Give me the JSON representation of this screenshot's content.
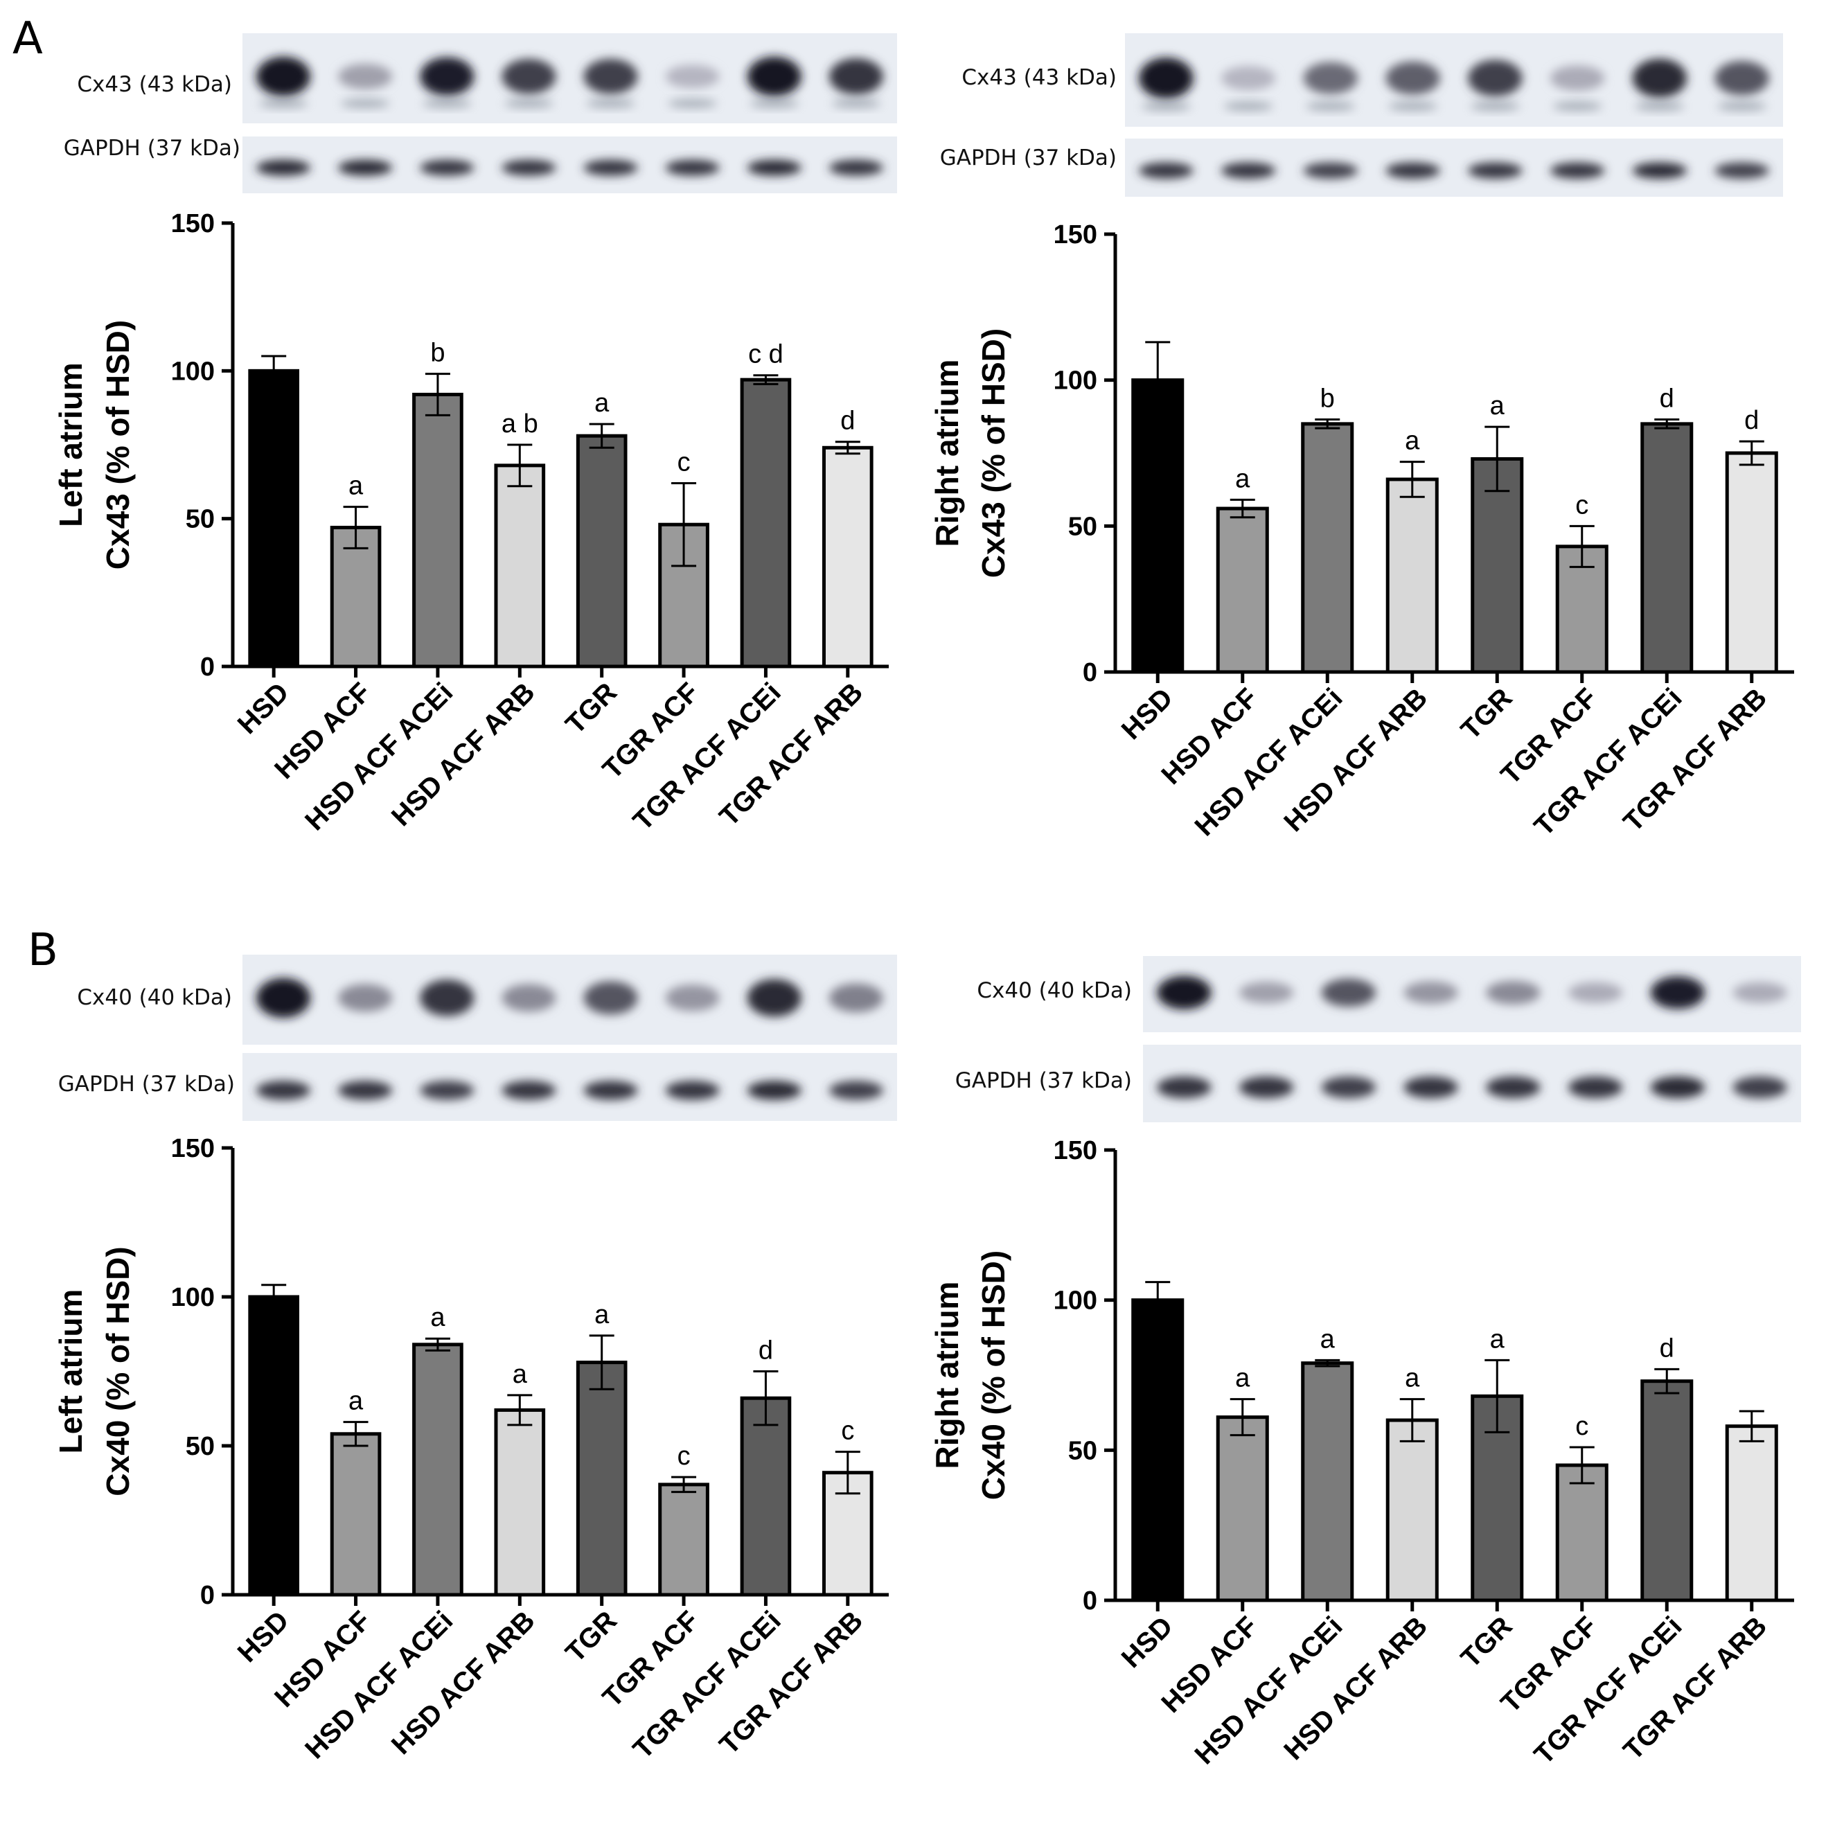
{
  "panels": {
    "A": "A",
    "B": "B"
  },
  "blots": [
    {
      "protein_label": "Cx43 (43 kDa)",
      "loading_label": "GAPDH (37 kDa)",
      "protein_intensity": [
        1.0,
        0.35,
        0.95,
        0.8,
        0.8,
        0.25,
        1.0,
        0.85
      ],
      "loading_intensity": [
        0.9,
        0.9,
        0.85,
        0.85,
        0.85,
        0.85,
        0.9,
        0.85
      ]
    },
    {
      "protein_label": "Cx43 (43 kDa)",
      "loading_label": "GAPDH (37 kDa)",
      "protein_intensity": [
        1.0,
        0.25,
        0.6,
        0.65,
        0.8,
        0.3,
        0.9,
        0.7
      ],
      "loading_intensity": [
        0.85,
        0.85,
        0.8,
        0.85,
        0.85,
        0.85,
        0.9,
        0.8
      ]
    },
    {
      "protein_label": "Cx40 (40 kDa)",
      "loading_label": "GAPDH (37 kDa)",
      "protein_intensity": [
        1.0,
        0.45,
        0.85,
        0.45,
        0.7,
        0.4,
        0.9,
        0.5
      ],
      "loading_intensity": [
        0.85,
        0.85,
        0.8,
        0.85,
        0.85,
        0.85,
        0.9,
        0.8
      ]
    },
    {
      "protein_label": "Cx40 (40 kDa)",
      "loading_label": "GAPDH (37 kDa)",
      "protein_intensity": [
        1.0,
        0.35,
        0.7,
        0.4,
        0.45,
        0.3,
        0.95,
        0.3
      ],
      "loading_intensity": [
        0.85,
        0.85,
        0.8,
        0.85,
        0.85,
        0.85,
        0.9,
        0.8
      ]
    }
  ],
  "chart_data": [
    {
      "type": "bar",
      "categories": [
        "HSD",
        "HSD ACF",
        "HSD ACF ACEi",
        "HSD ACF ARB",
        "TGR",
        "TGR ACF",
        "TGR ACF ACEi",
        "TGR ACF ARB"
      ],
      "values": [
        100,
        47,
        92,
        68,
        78,
        48,
        97,
        74
      ],
      "errors": [
        5,
        7,
        7,
        7,
        4,
        14,
        1.5,
        2
      ],
      "annotations": [
        "",
        "a",
        "b",
        "a b",
        "a",
        "c",
        "c d",
        "d"
      ],
      "bar_colors": [
        "#000000",
        "#9a9a9a",
        "#7b7b7b",
        "#d8d8d8",
        "#5c5c5c",
        "#9a9a9a",
        "#5c5c5c",
        "#e6e6e6"
      ],
      "ylabel_line1": "Left atrium",
      "ylabel_line2": "Cx43 (% of HSD)",
      "ylim": [
        0,
        150
      ],
      "yticks": [
        "0",
        "50",
        "100",
        "150"
      ]
    },
    {
      "type": "bar",
      "categories": [
        "HSD",
        "HSD ACF",
        "HSD ACF ACEi",
        "HSD ACF ARB",
        "TGR",
        "TGR ACF",
        "TGR ACF ACEi",
        "TGR ACF ARB"
      ],
      "values": [
        100,
        56,
        85,
        66,
        73,
        43,
        85,
        75
      ],
      "errors": [
        13,
        3,
        1.5,
        6,
        11,
        7,
        1.5,
        4
      ],
      "annotations": [
        "",
        "a",
        "b",
        "a",
        "a",
        "c",
        "d",
        "d"
      ],
      "bar_colors": [
        "#000000",
        "#9a9a9a",
        "#7b7b7b",
        "#d8d8d8",
        "#5c5c5c",
        "#9a9a9a",
        "#5c5c5c",
        "#e6e6e6"
      ],
      "ylabel_line1": "Right atrium",
      "ylabel_line2": "Cx43 (% of HSD)",
      "ylim": [
        0,
        150
      ],
      "yticks": [
        "0",
        "50",
        "100",
        "150"
      ]
    },
    {
      "type": "bar",
      "categories": [
        "HSD",
        "HSD ACF",
        "HSD ACF ACEi",
        "HSD ACF ARB",
        "TGR",
        "TGR ACF",
        "TGR ACF ACEi",
        "TGR ACF ARB"
      ],
      "values": [
        100,
        54,
        84,
        62,
        78,
        37,
        66,
        41
      ],
      "errors": [
        4,
        4,
        2,
        5,
        9,
        2.5,
        9,
        7
      ],
      "annotations": [
        "",
        "a",
        "a",
        "a",
        "a",
        "c",
        "d",
        "c"
      ],
      "bar_colors": [
        "#000000",
        "#9a9a9a",
        "#7b7b7b",
        "#d8d8d8",
        "#5c5c5c",
        "#9a9a9a",
        "#5c5c5c",
        "#e6e6e6"
      ],
      "ylabel_line1": "Left atrium",
      "ylabel_line2": "Cx40 (% of HSD)",
      "ylim": [
        0,
        150
      ],
      "yticks": [
        "0",
        "50",
        "100",
        "150"
      ]
    },
    {
      "type": "bar",
      "categories": [
        "HSD",
        "HSD ACF",
        "HSD ACF ACEi",
        "HSD ACF ARB",
        "TGR",
        "TGR ACF",
        "TGR ACF ACEi",
        "TGR ACF ARB"
      ],
      "values": [
        100,
        61,
        79,
        60,
        68,
        45,
        73,
        58
      ],
      "errors": [
        6,
        6,
        1,
        7,
        12,
        6,
        4,
        5
      ],
      "annotations": [
        "",
        "a",
        "a",
        "a",
        "a",
        "c",
        "d",
        ""
      ],
      "bar_colors": [
        "#000000",
        "#9a9a9a",
        "#7b7b7b",
        "#d8d8d8",
        "#5c5c5c",
        "#9a9a9a",
        "#5c5c5c",
        "#e6e6e6"
      ],
      "ylabel_line1": "Right atrium",
      "ylabel_line2": "Cx40 (% of HSD)",
      "ylim": [
        0,
        150
      ],
      "yticks": [
        "0",
        "50",
        "100",
        "150"
      ]
    }
  ]
}
